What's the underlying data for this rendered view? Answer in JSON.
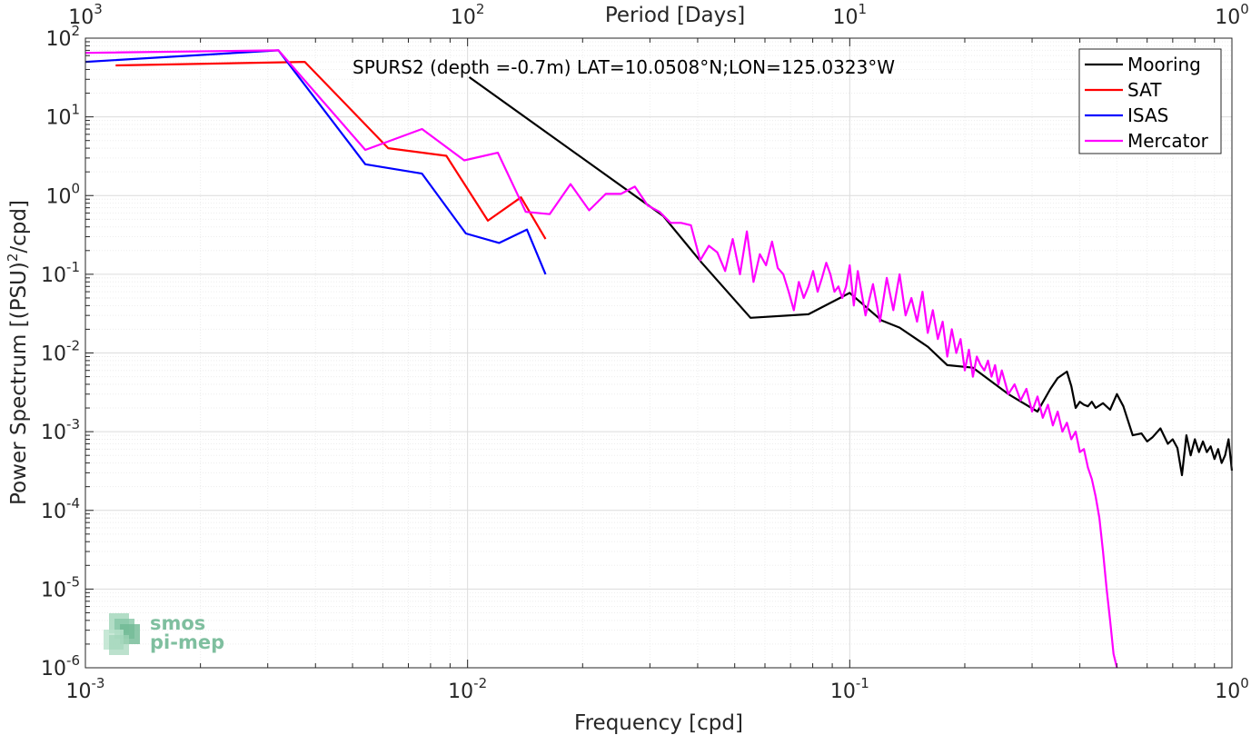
{
  "chart_data": {
    "type": "line",
    "title": "SPURS2 (depth =-0.7m) LAT=10.0508°N;LON=125.0323°W",
    "xlabel": "Frequency [cpd]",
    "ylabel_main": "Power Spectrum [(PSU)",
    "ylabel_sup": "2",
    "ylabel_tail": "/cpd]",
    "top_axis_label": "Period [Days]",
    "xscale": "log",
    "yscale": "log",
    "xlim": [
      0.001,
      1
    ],
    "ylim": [
      1e-06,
      100
    ],
    "grid": true,
    "legend_position": "top-right",
    "x_ticks": [
      {
        "value": 0.001,
        "base": "10",
        "exp": "-3"
      },
      {
        "value": 0.01,
        "base": "10",
        "exp": "-2"
      },
      {
        "value": 0.1,
        "base": "10",
        "exp": "-1"
      },
      {
        "value": 1,
        "base": "10",
        "exp": "0"
      }
    ],
    "y_ticks": [
      {
        "value": 100,
        "base": "10",
        "exp": "2"
      },
      {
        "value": 10,
        "base": "10",
        "exp": "1"
      },
      {
        "value": 1,
        "base": "10",
        "exp": "0"
      },
      {
        "value": 0.1,
        "base": "10",
        "exp": "-1"
      },
      {
        "value": 0.01,
        "base": "10",
        "exp": "-2"
      },
      {
        "value": 0.001,
        "base": "10",
        "exp": "-3"
      },
      {
        "value": 0.0001,
        "base": "10",
        "exp": "-4"
      },
      {
        "value": 1e-05,
        "base": "10",
        "exp": "-5"
      },
      {
        "value": 1e-06,
        "base": "10",
        "exp": "-6"
      }
    ],
    "top_ticks": [
      {
        "value": 0.001,
        "base": "10",
        "exp": "3"
      },
      {
        "value": 0.01,
        "base": "10",
        "exp": "2"
      },
      {
        "value": 0.1,
        "base": "10",
        "exp": "1"
      },
      {
        "value": 1,
        "base": "10",
        "exp": "0"
      }
    ],
    "series": [
      {
        "name": "Mooring",
        "color": "#000000",
        "x": [
          0.0101,
          0.0325,
          0.041,
          0.055,
          0.078,
          0.1,
          0.121,
          0.135,
          0.16,
          0.18,
          0.21,
          0.26,
          0.31,
          0.335,
          0.35,
          0.37,
          0.38,
          0.39,
          0.4,
          0.41,
          0.42,
          0.43,
          0.44,
          0.46,
          0.48,
          0.5,
          0.52,
          0.55,
          0.58,
          0.6,
          0.62,
          0.65,
          0.68,
          0.7,
          0.72,
          0.74,
          0.76,
          0.78,
          0.8,
          0.82,
          0.84,
          0.86,
          0.88,
          0.9,
          0.92,
          0.94,
          0.96,
          0.98,
          1.0
        ],
        "y": [
          32,
          0.55,
          0.14,
          0.028,
          0.031,
          0.058,
          0.026,
          0.021,
          0.012,
          0.007,
          0.0065,
          0.003,
          0.0018,
          0.0035,
          0.0048,
          0.0058,
          0.0038,
          0.002,
          0.0024,
          0.0022,
          0.0021,
          0.0024,
          0.002,
          0.0023,
          0.0019,
          0.003,
          0.0021,
          0.0009,
          0.00095,
          0.00075,
          0.00085,
          0.0011,
          0.0007,
          0.0008,
          0.00062,
          0.00028,
          0.0009,
          0.0005,
          0.0008,
          0.00055,
          0.00075,
          0.00055,
          0.00065,
          0.00045,
          0.0006,
          0.0004,
          0.0005,
          0.0008,
          0.00032
        ]
      },
      {
        "name": "SAT",
        "color": "#ff0000",
        "x": [
          0.0012,
          0.00375,
          0.0062,
          0.0088,
          0.0113,
          0.0138,
          0.016
        ],
        "y": [
          45,
          50,
          4.0,
          3.2,
          0.48,
          0.95,
          0.28
        ]
      },
      {
        "name": "ISAS",
        "color": "#0000ff",
        "x": [
          0.001,
          0.0032,
          0.0054,
          0.0076,
          0.0099,
          0.0121,
          0.0143,
          0.016
        ],
        "y": [
          50,
          70,
          2.5,
          1.9,
          0.33,
          0.25,
          0.37,
          0.1
        ]
      },
      {
        "name": "Mercator",
        "color": "#ff00ff",
        "x": [
          0.001,
          0.0032,
          0.0054,
          0.0076,
          0.0098,
          0.012,
          0.0142,
          0.0164,
          0.0186,
          0.0208,
          0.023,
          0.0252,
          0.0274,
          0.0296,
          0.0318,
          0.034,
          0.0362,
          0.0384,
          0.0406,
          0.0428,
          0.045,
          0.0472,
          0.0494,
          0.0516,
          0.0538,
          0.056,
          0.0582,
          0.0604,
          0.0626,
          0.0648,
          0.067,
          0.0692,
          0.0714,
          0.0736,
          0.0758,
          0.078,
          0.0802,
          0.0824,
          0.0846,
          0.0868,
          0.089,
          0.0912,
          0.0934,
          0.0956,
          0.0978,
          0.1,
          0.1025,
          0.105,
          0.11,
          0.115,
          0.12,
          0.125,
          0.13,
          0.135,
          0.14,
          0.145,
          0.15,
          0.155,
          0.16,
          0.165,
          0.17,
          0.175,
          0.18,
          0.185,
          0.19,
          0.195,
          0.2,
          0.205,
          0.21,
          0.215,
          0.22,
          0.225,
          0.23,
          0.235,
          0.24,
          0.245,
          0.25,
          0.26,
          0.27,
          0.28,
          0.29,
          0.3,
          0.31,
          0.32,
          0.33,
          0.34,
          0.35,
          0.36,
          0.37,
          0.38,
          0.39,
          0.4,
          0.41,
          0.42,
          0.43,
          0.44,
          0.45,
          0.46,
          0.47,
          0.48,
          0.49,
          0.5
        ],
        "y": [
          65,
          70,
          3.8,
          7.0,
          2.8,
          3.5,
          0.62,
          0.58,
          1.4,
          0.65,
          1.05,
          1.05,
          1.3,
          0.75,
          0.62,
          0.45,
          0.45,
          0.42,
          0.15,
          0.23,
          0.19,
          0.11,
          0.28,
          0.1,
          0.35,
          0.08,
          0.18,
          0.13,
          0.26,
          0.12,
          0.1,
          0.06,
          0.035,
          0.08,
          0.05,
          0.07,
          0.11,
          0.06,
          0.09,
          0.14,
          0.1,
          0.06,
          0.07,
          0.05,
          0.07,
          0.13,
          0.04,
          0.11,
          0.03,
          0.075,
          0.025,
          0.09,
          0.035,
          0.1,
          0.03,
          0.05,
          0.025,
          0.06,
          0.018,
          0.035,
          0.015,
          0.025,
          0.009,
          0.02,
          0.01,
          0.015,
          0.006,
          0.011,
          0.005,
          0.009,
          0.007,
          0.006,
          0.008,
          0.005,
          0.007,
          0.004,
          0.006,
          0.003,
          0.004,
          0.0025,
          0.0035,
          0.0018,
          0.0028,
          0.0015,
          0.0022,
          0.0012,
          0.0018,
          0.001,
          0.0013,
          0.0008,
          0.001,
          0.00055,
          0.0006,
          0.00035,
          0.00025,
          0.00015,
          8e-05,
          3e-05,
          1e-05,
          4e-06,
          1.5e-06,
          1e-06
        ]
      }
    ]
  },
  "logo": {
    "line1": "smos",
    "line2": "pi-mep"
  }
}
